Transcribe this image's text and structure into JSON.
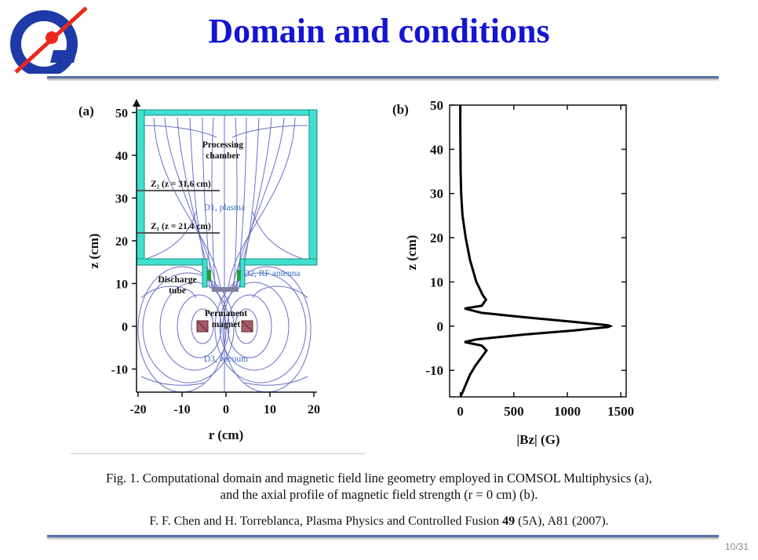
{
  "slide": {
    "title": "Domain and conditions",
    "page_number": "10/31"
  },
  "logo": {
    "icon": "institute-logo-icon"
  },
  "caption": {
    "line1": "Fig. 1. Computational domain and magnetic field line geometry employed in COMSOL Multiphysics (a),",
    "line2": "and the axial profile of magnetic field strength (r = 0 cm) (b).",
    "reference_prefix": "F. F. Chen and H. Torreblanca, Plasma Physics and Controlled Fusion ",
    "reference_volume": "49",
    "reference_suffix": " (5A), A81 (2007)."
  },
  "panel_a": {
    "label": "(a)",
    "xlabel": "r (cm)",
    "ylabel": "z (cm)",
    "xticks": [
      "-20",
      "-10",
      "0",
      "10",
      "20"
    ],
    "yticks": [
      "50",
      "40",
      "30",
      "20",
      "10",
      "0",
      "-10"
    ],
    "annotations": {
      "processing_chamber_1": "Processing",
      "processing_chamber_2": "chamber",
      "z2_label": "Z₂ (z = 31.6 cm)",
      "z1_label": "Z₁ (z = 21.4 cm)",
      "d1": "D1, plasma",
      "d2": "D2, RF antenna",
      "discharge_1": "Discharge",
      "discharge_2": "tube",
      "magnet_1": "Permanent",
      "magnet_2": "magnet",
      "d3": "D3, vacuum"
    },
    "colors": {
      "chamber_wall": "#3ee0d0",
      "field_lines": "#6a6ec8",
      "magnet": "#a85c6a",
      "region_label": "#3a6ec0"
    }
  },
  "chart_data": {
    "type": "line",
    "panel_label": "(b)",
    "xlabel": "|Bz| (G)",
    "ylabel": "z (cm)",
    "xlim": [
      -100,
      1550
    ],
    "ylim": [
      -16,
      50
    ],
    "xticks": [
      0,
      500,
      1000,
      1500
    ],
    "yticks": [
      50,
      40,
      30,
      20,
      10,
      0,
      -10
    ],
    "orientation": "profile (z on vertical axis)",
    "series": [
      {
        "points": [
          [
            0,
            50
          ],
          [
            0,
            45
          ],
          [
            1,
            40
          ],
          [
            3,
            35
          ],
          [
            8,
            30
          ],
          [
            20,
            25
          ],
          [
            50,
            20
          ],
          [
            90,
            15
          ],
          [
            150,
            10
          ],
          [
            210,
            7
          ],
          [
            240,
            6
          ],
          [
            200,
            4.6
          ],
          [
            40,
            4.0
          ],
          [
            200,
            3.0
          ],
          [
            600,
            2.0
          ],
          [
            1050,
            1.0
          ],
          [
            1380,
            0.2
          ],
          [
            1400,
            0
          ],
          [
            1380,
            -0.2
          ],
          [
            1050,
            -1.0
          ],
          [
            600,
            -1.9
          ],
          [
            150,
            -3.0
          ],
          [
            40,
            -3.6
          ],
          [
            200,
            -4.4
          ],
          [
            245,
            -5.5
          ],
          [
            200,
            -7
          ],
          [
            140,
            -9
          ],
          [
            90,
            -11
          ],
          [
            55,
            -13
          ],
          [
            20,
            -15
          ],
          [
            0,
            -16
          ]
        ]
      }
    ]
  }
}
